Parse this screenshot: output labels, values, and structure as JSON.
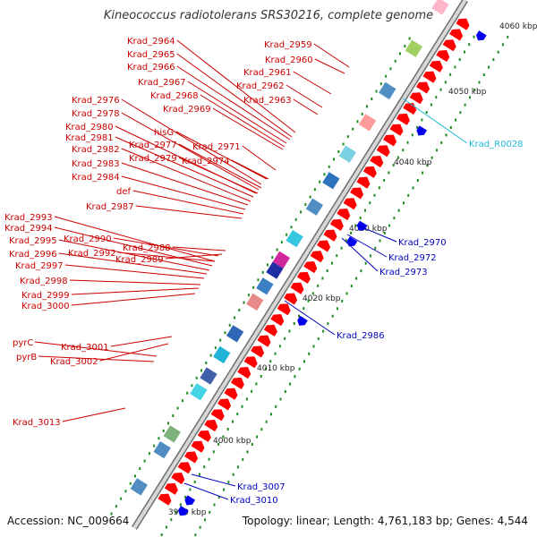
{
  "header": {
    "title": "Kineococcus radiotolerans SRS30216, complete genome"
  },
  "footer": {
    "accession": "Accession: NC_009664",
    "summary": "Topology: linear; Length: 4,761,183 bp; Genes: 4,544"
  },
  "colors": {
    "forward_label": "#cc0000",
    "reverse_label": "#0000bb",
    "rna_label": "#22b8d8",
    "forward_gene": "#ff0000",
    "reverse_gene": "#0000ee",
    "backbone": "#9a9a9a",
    "tick": "#1e8c1e"
  },
  "axis": {
    "ticks": [
      "3990 kbp",
      "4000 kbp",
      "4010 kbp",
      "4020 kbp",
      "4030 kbp",
      "4040 kbp",
      "4050 kbp",
      "4060 kbp"
    ]
  },
  "left_labels": [
    "Krad_2964",
    "Krad_2965",
    "Krad_2966",
    "Krad_2967",
    "Krad_2968",
    "Krad_2969",
    "Krad_2976",
    "Krad_2978",
    "Krad_2980",
    "Krad_2981",
    "Krad_2982",
    "Krad_2983",
    "Krad_2984",
    "def",
    "Krad_2987",
    "Krad_2993",
    "Krad_2994",
    "Krad_2995",
    "Krad_2996",
    "Krad_2997",
    "Krad_2998",
    "Krad_2999",
    "Krad_3000",
    "pyrC",
    "pyrB",
    "Krad_3013",
    "Krad_2959",
    "Krad_2960",
    "Krad_2961",
    "Krad_2962",
    "Krad_2963",
    "hisG",
    "Krad_2977",
    "Krad_2979",
    "Krad_2971",
    "Krad_2974",
    "Krad_2990",
    "Krad_2992",
    "Krad_2988",
    "Krad_2989",
    "Krad_3001",
    "Krad_3002"
  ],
  "right_labels": [
    "Krad_R0028",
    "Krad_2970",
    "Krad_2972",
    "Krad_2973",
    "Krad_2986",
    "Krad_3007",
    "Krad_3010"
  ]
}
